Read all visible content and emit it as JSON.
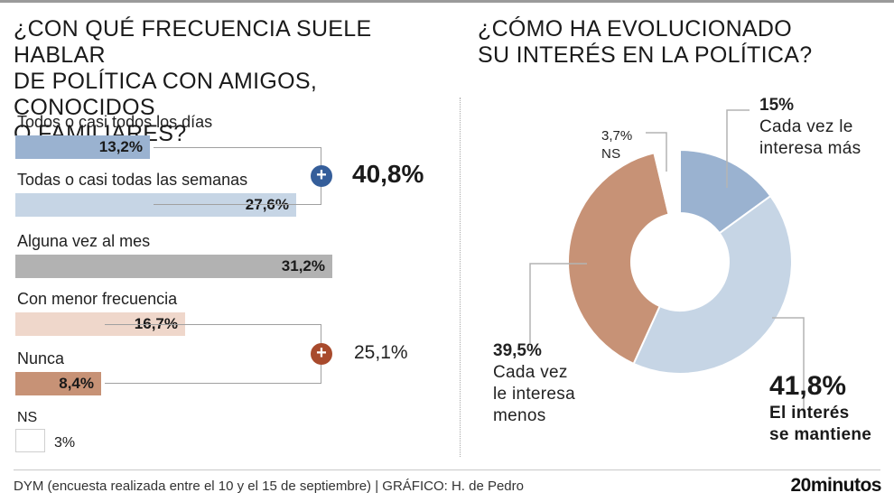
{
  "header": {
    "left_title_lines": [
      "¿CON QUÉ FRECUENCIA SUELE HABLAR",
      "DE POLÍTICA CON AMIGOS, CONOCIDOS",
      "O FAMILIARES?"
    ],
    "right_title_lines": [
      "¿CÓMO HA EVOLUCIONADO",
      "SU INTERÉS EN LA POLÍTICA?"
    ]
  },
  "chart_data": [
    {
      "type": "bar",
      "orientation": "horizontal",
      "title": "¿CON QUÉ FRECUENCIA SUELE HABLAR DE POLÍTICA CON AMIGOS, CONOCIDOS O FAMILIARES?",
      "unit": "%",
      "xlim": [
        0,
        31.2
      ],
      "bars": [
        {
          "label": "Todos o casi todos los días",
          "value": 13.2,
          "display": "13,2%",
          "color": "#9ab2d0"
        },
        {
          "label": "Todas o casi todas las semanas",
          "value": 27.6,
          "display": "27,6%",
          "color": "#c6d5e5"
        },
        {
          "label": "Alguna vez al mes",
          "value": 31.2,
          "display": "31,2%",
          "color": "#b2b2b2"
        },
        {
          "label": "Con menor frecuencia",
          "value": 16.7,
          "display": "16,7%",
          "color": "#efd7cb"
        },
        {
          "label": "Nunca",
          "value": 8.4,
          "display": "8,4%",
          "color": "#c79276"
        }
      ],
      "groups": [
        {
          "symbol": "+",
          "total": "40,8%",
          "bars": [
            0,
            1
          ],
          "color": "#355e9a"
        },
        {
          "symbol": "+",
          "total": "25,1%",
          "bars": [
            3,
            4
          ],
          "color": "#a84a2c"
        }
      ],
      "ns": {
        "label": "NS",
        "value": 3,
        "display": "3%",
        "color": "#ffffff"
      }
    },
    {
      "type": "pie",
      "subtype": "donut",
      "title": "¿CÓMO HA EVOLUCIONADO SU INTERÉS EN LA POLÍTICA?",
      "unit": "%",
      "slices": [
        {
          "label": [
            "Cada vez le",
            "interesa más"
          ],
          "value": 15,
          "display": "15%",
          "color": "#9ab2d0"
        },
        {
          "label": [
            "El interés",
            "se mantiene"
          ],
          "value": 41.8,
          "display": "41,8%",
          "color": "#c6d5e5"
        },
        {
          "label": [
            "Cada vez",
            "le interesa",
            "menos"
          ],
          "value": 39.5,
          "display": "39,5%",
          "color": "#c79276"
        },
        {
          "label": [
            "NS"
          ],
          "value": 3.7,
          "display": "3,7%",
          "color": "#ffffff"
        }
      ]
    }
  ],
  "footer": {
    "source": "DYM (encuesta realizada entre el 10 y el 15 de septiembre)   |  GRÁFICO: H. de Pedro",
    "brand": "20minutos"
  }
}
